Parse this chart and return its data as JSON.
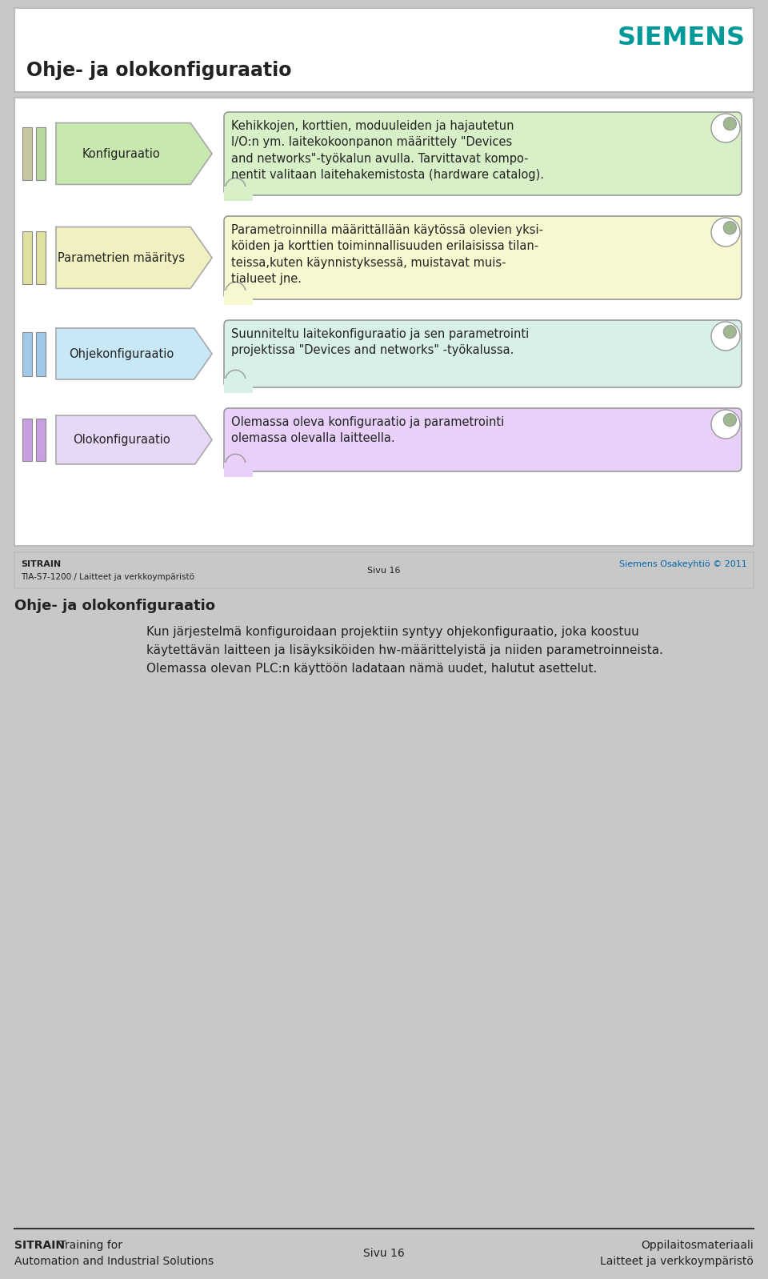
{
  "title": "Ohje- ja olokonfiguraatio",
  "siemens_color": "#009999",
  "slide_bg": "#c8c8c8",
  "content_bg": "#ffffff",
  "rows": [
    {
      "label": "Konfiguraatio",
      "arrow_fill": "#c8e8b0",
      "arrow_stroke": "#aaaaaa",
      "bar_color1": "#c8c8a0",
      "bar_color2": "#b8d8a0",
      "scroll_bg": "#d8f0c8",
      "scroll_stroke": "#999999",
      "text": "Kehikkojen, korttien, moduuleiden ja hajautetun\nI/O:n ym. laitekokoonpanon määrittely \"Devices\nand networks\"-työkalun avulla. Tarvittavat kompo-\nnentit valitaan laitehakemistosta (hardware catalog)."
    },
    {
      "label": "Parametrien määritys",
      "arrow_fill": "#f0f0c0",
      "arrow_stroke": "#aaaaaa",
      "bar_color1": "#e0e0a0",
      "bar_color2": "#e0e0a0",
      "scroll_bg": "#f8f8d0",
      "scroll_stroke": "#999999",
      "text": "Parametroinnilla määrittällään käytössä olevien yksi-\nköiden ja korttien toiminnallisuuden erilaisissa tilan-\nteissa,kuten käynnistyksessä, muistavat muis-\ntialueet jne."
    },
    {
      "label": "Ohjekonfiguraatio",
      "arrow_fill": "#c8e8f8",
      "arrow_stroke": "#aaaaaa",
      "bar_color1": "#a0c8e8",
      "bar_color2": "#a0c8e8",
      "scroll_bg": "#d8f0e8",
      "scroll_stroke": "#999999",
      "text": "Suunniteltu laitekonfiguraatio ja sen parametrointi\nprojektissa \"Devices and networks\" -työkalussa."
    },
    {
      "label": "Olokonfiguraatio",
      "arrow_fill": "#e8d8f8",
      "arrow_stroke": "#aaaaaa",
      "bar_color1": "#c8a0e0",
      "bar_color2": "#c8a0e0",
      "scroll_bg": "#e8d0f8",
      "scroll_stroke": "#999999",
      "text": "Olemassa oleva konfiguraatio ja parametrointi\nolemassa olevalla laitteella."
    }
  ],
  "sep_sitrain_bold": "SITRAIN",
  "sep_sub1": "TIA-S7-1200 / Laitteet ja verkkoympäristö",
  "sep_sub2": "Sivu 16",
  "sep_sub3": "Siemens Osakeyhtiö © 2011",
  "sep_sub3_color": "#0066aa",
  "body_title": "Ohje- ja olokonfiguraatio",
  "body_text_indent": "Kun järjestelmä konfiguroidaan projektiin syntyy ohjekonfiguraatio, joka koostuu\nkäytettävän laitteen ja lisäyksiköiden hw-määrittelyistä ja niiden parametroinneista.\nOlemassa olevan PLC:n käyttöön ladataan nämä uudet, halutut asettelut.",
  "footer_sitrain_bold": "SITRAIN",
  "footer_line1_rest": " Training for",
  "footer_line2": "Automation and Industrial Solutions",
  "footer_center": "Sivu 16",
  "footer_right1": "Oppilaitosmateriaali",
  "footer_right2": "Laitteet ja verkkoympäristö"
}
